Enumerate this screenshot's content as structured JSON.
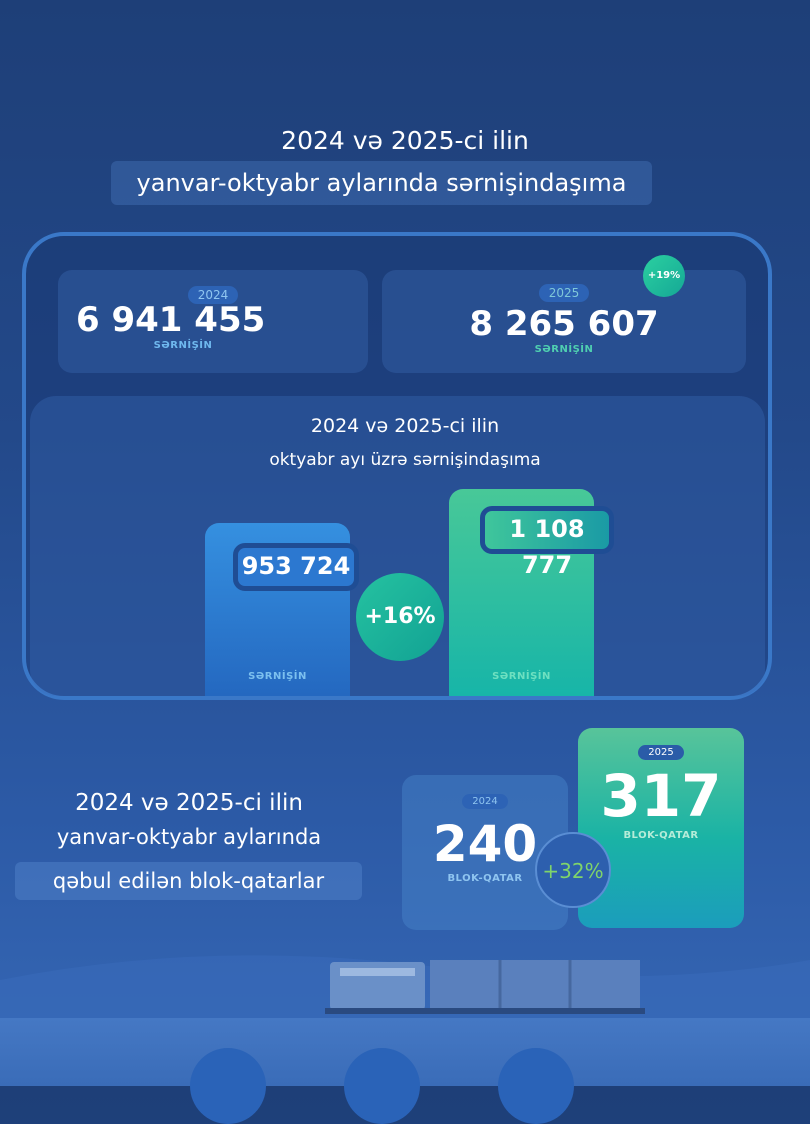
{
  "title": {
    "line1": "2024 və 2025-ci ilin",
    "line2": "yanvar-oktyabr aylarında sərnişindaşıma"
  },
  "totals": [
    {
      "year": "2024",
      "value": "6 941 455",
      "unit": "SƏRNİŞİN"
    },
    {
      "year": "2025",
      "value": "8 265 607",
      "unit": "SƏRNİŞİN",
      "change": "+19%"
    }
  ],
  "october": {
    "line1": "2024 və 2025-ci ilin",
    "line2": "oktyabr ayı üzrə sərnişindaşıma",
    "bars": [
      {
        "value": "953 724",
        "unit": "SƏRNİŞİN",
        "color": "#2f80d6"
      },
      {
        "value": "1 108 777",
        "unit": "SƏRNİŞİN",
        "color": "#1dbfa0"
      }
    ],
    "change": "+16%"
  },
  "block_trains": {
    "line1": "2024 və 2025-ci ilin",
    "line2": "yanvar-oktyabr aylarında",
    "line3": "qəbul edilən blok-qatarlar",
    "cards": [
      {
        "year": "2024",
        "value": "240",
        "unit": "BLOK-QATAR"
      },
      {
        "year": "2025",
        "value": "317",
        "unit": "BLOK-QATAR"
      }
    ],
    "change": "+32%"
  },
  "colors": {
    "accent_green": "#1dbfa0",
    "accent_blue": "#2f80d6",
    "change_green": "#7fd46a"
  }
}
